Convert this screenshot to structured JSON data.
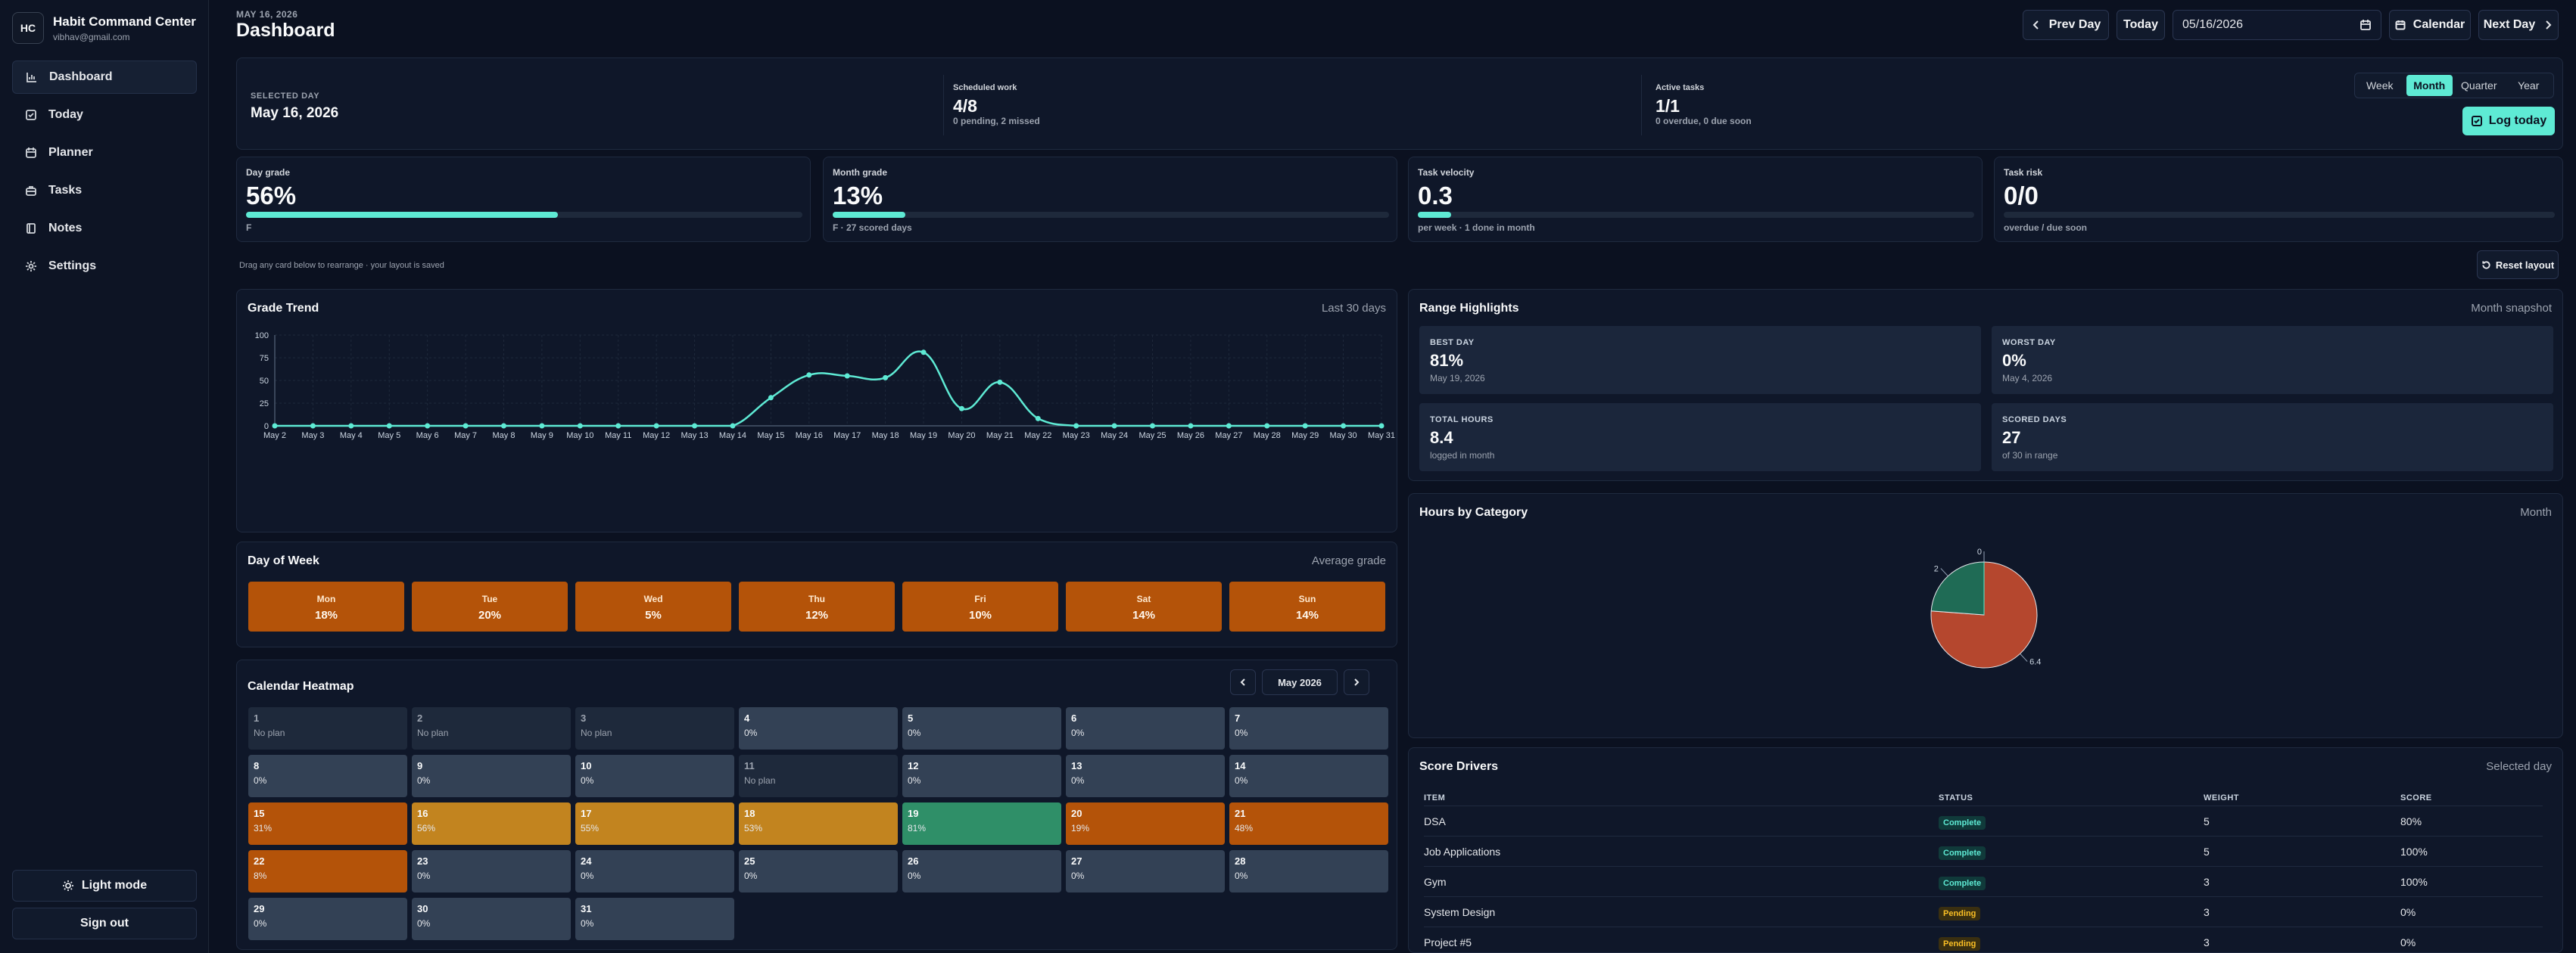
{
  "app": {
    "logo": "HC",
    "name": "Habit Command Center",
    "email": "vibhav@gmail.com"
  },
  "nav": [
    {
      "label": "Dashboard",
      "icon": "chart-icon",
      "active": true
    },
    {
      "label": "Today",
      "icon": "check-square-icon",
      "active": false
    },
    {
      "label": "Planner",
      "icon": "calendar-icon",
      "active": false
    },
    {
      "label": "Tasks",
      "icon": "briefcase-icon",
      "active": false
    },
    {
      "label": "Notes",
      "icon": "notebook-icon",
      "active": false
    },
    {
      "label": "Settings",
      "icon": "gear-icon",
      "active": false
    }
  ],
  "sidebar_footer": {
    "theme_label": "Light mode",
    "signout_label": "Sign out"
  },
  "header": {
    "date": "MAY 16, 2026",
    "title": "Dashboard",
    "prev_label": "Prev Day",
    "today_label": "Today",
    "date_value": "05/16/2026",
    "calendar_label": "Calendar",
    "next_label": "Next Day"
  },
  "summary": {
    "selected_label": "SELECTED DAY",
    "selected_value": "May 16, 2026",
    "scheduled_label": "Scheduled work",
    "scheduled_value": "4/8",
    "scheduled_sub": "0 pending, 2 missed",
    "active_label": "Active tasks",
    "active_value": "1/1",
    "active_sub": "0 overdue, 0 due soon",
    "ranges": [
      "Week",
      "Month",
      "Quarter",
      "Year"
    ],
    "active_range": "Month",
    "log_label": "Log today"
  },
  "kpis": [
    {
      "label": "Day grade",
      "value": "56%",
      "sub": "F",
      "progress": 0.56
    },
    {
      "label": "Month grade",
      "value": "13%",
      "sub": "F · 27 scored days",
      "progress": 0.13
    },
    {
      "label": "Task velocity",
      "value": "0.3",
      "sub": "per week · 1 done in month",
      "progress": 0.06
    },
    {
      "label": "Task risk",
      "value": "0/0",
      "sub": "overdue / due soon",
      "progress": 0
    }
  ],
  "layout_hint": "Drag any card below to rearrange · your layout is saved",
  "reset_label": "Reset layout",
  "grade_trend": {
    "title": "Grade Trend",
    "note": "Last 30 days"
  },
  "chart_data": {
    "type": "line",
    "title": "Grade Trend",
    "x": [
      "May 2",
      "May 3",
      "May 4",
      "May 5",
      "May 6",
      "May 7",
      "May 8",
      "May 9",
      "May 10",
      "May 11",
      "May 12",
      "May 13",
      "May 14",
      "May 15",
      "May 16",
      "May 17",
      "May 18",
      "May 19",
      "May 20",
      "May 21",
      "May 22",
      "May 23",
      "May 24",
      "May 25",
      "May 26",
      "May 27",
      "May 28",
      "May 29",
      "May 30",
      "May 31"
    ],
    "series": [
      {
        "values": [
          0,
          0,
          0,
          0,
          0,
          0,
          0,
          0,
          0,
          0,
          0,
          0,
          0,
          31,
          56,
          55,
          53,
          81,
          19,
          48,
          8,
          0,
          0,
          0,
          0,
          0,
          0,
          0,
          0,
          0
        ]
      }
    ],
    "yticks": [
      0,
      25,
      50,
      75,
      100
    ],
    "ylim": [
      0,
      100
    ],
    "grid": true,
    "color": "#5eead4"
  },
  "day_of_week": {
    "title": "Day of Week",
    "note": "Average grade",
    "days": [
      {
        "label": "Mon",
        "value": "18%"
      },
      {
        "label": "Tue",
        "value": "20%"
      },
      {
        "label": "Wed",
        "value": "5%"
      },
      {
        "label": "Thu",
        "value": "12%"
      },
      {
        "label": "Fri",
        "value": "10%"
      },
      {
        "label": "Sat",
        "value": "14%"
      },
      {
        "label": "Sun",
        "value": "14%"
      }
    ]
  },
  "heatmap": {
    "title": "Calendar Heatmap",
    "month": "May 2026",
    "cells": [
      {
        "day": "1",
        "text": "No plan",
        "status": "none"
      },
      {
        "day": "2",
        "text": "No plan",
        "status": "none"
      },
      {
        "day": "3",
        "text": "No plan",
        "status": "none"
      },
      {
        "day": "4",
        "text": "0%",
        "status": "zero"
      },
      {
        "day": "5",
        "text": "0%",
        "status": "zero"
      },
      {
        "day": "6",
        "text": "0%",
        "status": "zero"
      },
      {
        "day": "7",
        "text": "0%",
        "status": "zero"
      },
      {
        "day": "8",
        "text": "0%",
        "status": "zero"
      },
      {
        "day": "9",
        "text": "0%",
        "status": "zero"
      },
      {
        "day": "10",
        "text": "0%",
        "status": "zero"
      },
      {
        "day": "11",
        "text": "No plan",
        "status": "none"
      },
      {
        "day": "12",
        "text": "0%",
        "status": "zero"
      },
      {
        "day": "13",
        "text": "0%",
        "status": "zero"
      },
      {
        "day": "14",
        "text": "0%",
        "status": "zero"
      },
      {
        "day": "15",
        "text": "31%",
        "status": "low"
      },
      {
        "day": "16",
        "text": "56%",
        "status": "mid"
      },
      {
        "day": "17",
        "text": "55%",
        "status": "mid"
      },
      {
        "day": "18",
        "text": "53%",
        "status": "mid"
      },
      {
        "day": "19",
        "text": "81%",
        "status": "high"
      },
      {
        "day": "20",
        "text": "19%",
        "status": "low"
      },
      {
        "day": "21",
        "text": "48%",
        "status": "low"
      },
      {
        "day": "22",
        "text": "8%",
        "status": "low"
      },
      {
        "day": "23",
        "text": "0%",
        "status": "zero"
      },
      {
        "day": "24",
        "text": "0%",
        "status": "zero"
      },
      {
        "day": "25",
        "text": "0%",
        "status": "zero"
      },
      {
        "day": "26",
        "text": "0%",
        "status": "zero"
      },
      {
        "day": "27",
        "text": "0%",
        "status": "zero"
      },
      {
        "day": "28",
        "text": "0%",
        "status": "zero"
      },
      {
        "day": "29",
        "text": "0%",
        "status": "zero"
      },
      {
        "day": "30",
        "text": "0%",
        "status": "zero"
      },
      {
        "day": "31",
        "text": "0%",
        "status": "zero"
      }
    ],
    "colors": {
      "none": "#1e293b",
      "zero": "#334155",
      "low": "#b45309",
      "mid": "#c2841f",
      "high": "#2f8f68"
    }
  },
  "range_highlights": {
    "title": "Range Highlights",
    "note": "Month snapshot",
    "cards": [
      {
        "label": "BEST DAY",
        "value": "81%",
        "sub": "May 19, 2026"
      },
      {
        "label": "WORST DAY",
        "value": "0%",
        "sub": "May 4, 2026"
      },
      {
        "label": "TOTAL HOURS",
        "value": "8.4",
        "sub": "logged in month"
      },
      {
        "label": "SCORED DAYS",
        "value": "27",
        "sub": "of 30 in range"
      }
    ]
  },
  "hours_by_category": {
    "title": "Hours by Category",
    "note": "Month",
    "pie": [
      {
        "value": 6.4,
        "label": "6.4",
        "color": "#b5472e"
      },
      {
        "value": 2,
        "label": "2",
        "color": "#1f6b55"
      },
      {
        "value": 0,
        "label": "0",
        "color": "#5eead4"
      }
    ]
  },
  "score_drivers": {
    "title": "Score Drivers",
    "note": "Selected day",
    "columns": [
      "ITEM",
      "STATUS",
      "WEIGHT",
      "SCORE"
    ],
    "rows": [
      {
        "item": "DSA",
        "status": "Complete",
        "weight": "5",
        "score": "80%"
      },
      {
        "item": "Job Applications",
        "status": "Complete",
        "weight": "5",
        "score": "100%"
      },
      {
        "item": "Gym",
        "status": "Complete",
        "weight": "3",
        "score": "100%"
      },
      {
        "item": "System Design",
        "status": "Pending",
        "weight": "3",
        "score": "0%"
      },
      {
        "item": "Project #5",
        "status": "Pending",
        "weight": "3",
        "score": "0%"
      }
    ]
  }
}
